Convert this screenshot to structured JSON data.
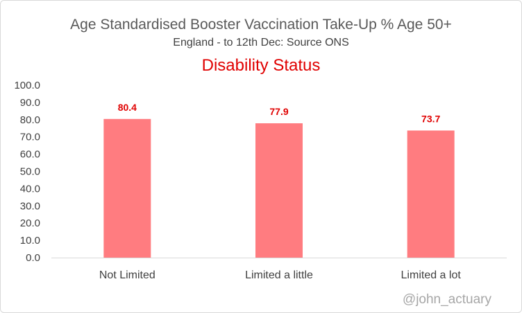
{
  "chart_data": {
    "type": "bar",
    "title": "Age Standardised Booster Vaccination Take-Up % Age 50+",
    "subtitle": "England - to 12th Dec: Source ONS",
    "section_title": "Disability Status",
    "categories": [
      "Not Limited",
      "Limited a little",
      "Limited a lot"
    ],
    "values": [
      80.4,
      77.9,
      73.7
    ],
    "data_labels": [
      "80.4",
      "77.9",
      "73.7"
    ],
    "y_ticks": [
      "0.0",
      "10.0",
      "20.0",
      "30.0",
      "40.0",
      "50.0",
      "60.0",
      "70.0",
      "80.0",
      "90.0",
      "100.0"
    ],
    "ylim": [
      0,
      100
    ],
    "xlabel": "",
    "ylabel": "",
    "grid": false,
    "legend": "none",
    "bar_color": "#ff7c80",
    "label_color": "#e00000",
    "watermark": "@john_actuary"
  }
}
